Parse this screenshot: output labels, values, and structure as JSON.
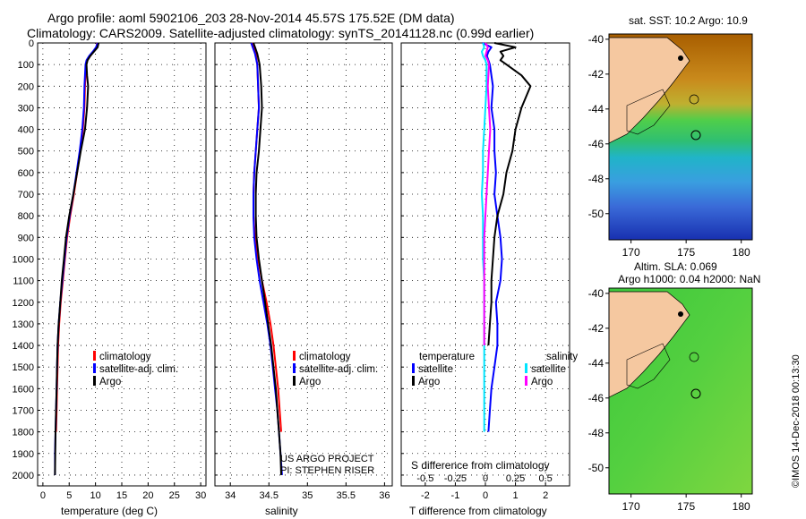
{
  "header": {
    "title_line1": "Argo profile: aoml 5902106_203 28-Nov-2014 45.57S 175.52E (DM data)",
    "title_line2": "Climatology: CARS2009. Satellite-adjusted climatology: synTS_20141128.nc (0.99d earlier)"
  },
  "credits": {
    "project": "US ARGO PROJECT",
    "pi": "PI: STEPHEN RISER",
    "stamp": "©IMOS 14-Dec-2018 00:13:30"
  },
  "colors": {
    "climatology": "#ff0000",
    "satellite": "#0000ff",
    "argo": "#000000",
    "satellite_s": "#00e5ff",
    "argo_s": "#ff00ff",
    "land": "#f5c8a0"
  },
  "chart_data": [
    {
      "id": "temperature",
      "type": "line",
      "xlabel": "temperature (deg C)",
      "ylabel": "",
      "xlim": [
        -1,
        31
      ],
      "ylim": [
        2050,
        0
      ],
      "xticks": [
        0,
        5,
        10,
        15,
        20,
        25,
        30
      ],
      "yticks": [
        0,
        100,
        200,
        300,
        400,
        500,
        600,
        700,
        800,
        900,
        1000,
        1100,
        1200,
        1300,
        1400,
        1500,
        1600,
        1700,
        1800,
        1900,
        2000
      ],
      "grid": true,
      "legend_position": "lower-center",
      "legend": [
        "climatology",
        "satellite-adj. clim.",
        "Argo"
      ],
      "series": [
        {
          "name": "climatology",
          "color": "#ff0000",
          "pressure": [
            0,
            20,
            40,
            60,
            80,
            100,
            150,
            200,
            300,
            400,
            500,
            600,
            700,
            800,
            900,
            1000,
            1100,
            1200,
            1300,
            1400,
            1500,
            1600,
            1700,
            1800
          ],
          "values": [
            10.3,
            10.2,
            9.6,
            9.0,
            8.4,
            8.2,
            8.1,
            8.0,
            7.9,
            7.6,
            7.1,
            6.5,
            5.9,
            5.2,
            4.6,
            4.2,
            3.8,
            3.4,
            3.1,
            2.9,
            2.8,
            2.7,
            2.6,
            2.5
          ]
        },
        {
          "name": "satellite-adj. clim.",
          "color": "#0000ff",
          "pressure": [
            0,
            20,
            40,
            60,
            80,
            100,
            150,
            200,
            300,
            400,
            500,
            600,
            700,
            800,
            900,
            1000,
            1100,
            1200,
            1300,
            1400,
            1500,
            1600,
            1700,
            1800,
            1900,
            2000
          ],
          "values": [
            10.4,
            10.1,
            9.5,
            8.8,
            8.3,
            8.1,
            8.0,
            7.9,
            7.8,
            7.5,
            7.0,
            6.4,
            5.8,
            5.1,
            4.5,
            4.1,
            3.7,
            3.3,
            3.0,
            2.8,
            2.7,
            2.6,
            2.5,
            2.4,
            2.3,
            2.3
          ]
        },
        {
          "name": "Argo",
          "color": "#000000",
          "pressure": [
            0,
            20,
            40,
            60,
            80,
            100,
            150,
            200,
            300,
            400,
            500,
            600,
            700,
            800,
            900,
            1000,
            1100,
            1200,
            1300,
            1400,
            1500,
            1600,
            1700,
            1800,
            1900,
            2000
          ],
          "values": [
            10.6,
            10.4,
            9.7,
            9.0,
            8.5,
            8.3,
            8.4,
            8.6,
            8.4,
            8.0,
            7.2,
            6.5,
            5.8,
            5.0,
            4.4,
            4.0,
            3.6,
            3.3,
            3.0,
            2.8,
            2.7,
            2.6,
            2.5,
            2.4,
            2.35,
            2.3
          ]
        }
      ]
    },
    {
      "id": "salinity",
      "type": "line",
      "xlabel": "salinity",
      "xlim": [
        33.8,
        36.1
      ],
      "ylim": [
        2050,
        0
      ],
      "xticks": [
        34,
        34.5,
        35,
        35.5,
        36
      ],
      "xtick_labels": [
        "34",
        "34.5",
        "35",
        "35.5",
        "36"
      ],
      "grid": true,
      "legend_position": "lower-right",
      "legend": [
        "climatology",
        "satellite-adj. clim.",
        "Argo"
      ],
      "series": [
        {
          "name": "climatology",
          "color": "#ff0000",
          "pressure": [
            0,
            20,
            50,
            100,
            200,
            300,
            400,
            500,
            600,
            700,
            800,
            900,
            1000,
            1100,
            1200,
            1300,
            1400,
            1500,
            1600,
            1700,
            1800
          ],
          "values": [
            34.28,
            34.3,
            34.33,
            34.35,
            34.36,
            34.37,
            34.35,
            34.33,
            34.31,
            34.3,
            34.3,
            34.32,
            34.36,
            34.41,
            34.47,
            34.52,
            34.56,
            34.59,
            34.62,
            34.64,
            34.66
          ]
        },
        {
          "name": "satellite-adj. clim.",
          "color": "#0000ff",
          "pressure": [
            0,
            20,
            50,
            100,
            200,
            300,
            400,
            500,
            600,
            700,
            800,
            900,
            1000,
            1100,
            1200,
            1300,
            1400,
            1500,
            1600,
            1700,
            1800,
            1900,
            2000
          ],
          "values": [
            34.27,
            34.29,
            34.32,
            34.35,
            34.36,
            34.37,
            34.35,
            34.33,
            34.31,
            34.3,
            34.3,
            34.31,
            34.34,
            34.38,
            34.43,
            34.48,
            34.52,
            34.55,
            34.58,
            34.61,
            34.63,
            34.65,
            34.67
          ]
        },
        {
          "name": "Argo",
          "color": "#000000",
          "pressure": [
            0,
            20,
            50,
            100,
            200,
            300,
            400,
            500,
            600,
            700,
            800,
            900,
            1000,
            1100,
            1200,
            1300,
            1400,
            1500,
            1600,
            1700,
            1800,
            1900,
            2000
          ],
          "values": [
            34.3,
            34.32,
            34.35,
            34.38,
            34.4,
            34.41,
            34.39,
            34.37,
            34.34,
            34.33,
            34.33,
            34.34,
            34.37,
            34.41,
            34.45,
            34.49,
            34.53,
            34.56,
            34.59,
            34.61,
            34.63,
            34.65,
            34.66
          ]
        }
      ]
    },
    {
      "id": "differences",
      "type": "line",
      "xlabel": "T difference from climatology",
      "xlabel_top": "S difference from climatology",
      "xlim": [
        -2.8,
        2.8
      ],
      "ylim": [
        2050,
        0
      ],
      "xticks": [
        -2,
        -1,
        0,
        1,
        2
      ],
      "xticks_S": [
        -0.5,
        -0.25,
        0,
        0.25,
        0.5
      ],
      "xtick_labels_S": [
        "-0.5",
        "-0.25",
        "0",
        "0.25",
        "0.5"
      ],
      "s_scale": 4,
      "grid": true,
      "legend_position": "lower",
      "legend_titles": [
        "temperature",
        "salinity"
      ],
      "legend_left": [
        "satellite",
        "Argo"
      ],
      "legend_right": [
        "satellite",
        "Argo"
      ],
      "series": [
        {
          "name": "T satellite",
          "color": "#0000ff",
          "pressure": [
            0,
            20,
            40,
            60,
            80,
            100,
            150,
            200,
            300,
            400,
            500,
            600,
            700,
            800,
            900,
            1000,
            1100,
            1200,
            1300,
            1400,
            1500,
            1600,
            1700,
            1800
          ],
          "values": [
            -0.1,
            0.2,
            0.1,
            0.05,
            0.1,
            0.15,
            0.2,
            0.25,
            0.2,
            0.3,
            0.3,
            0.35,
            0.3,
            0.4,
            0.5,
            0.55,
            0.5,
            0.35,
            0.4,
            0.4,
            0.3,
            0.2,
            0.15,
            0.1
          ]
        },
        {
          "name": "T Argo",
          "color": "#000000",
          "pressure": [
            0,
            20,
            40,
            60,
            80,
            100,
            150,
            200,
            300,
            400,
            500,
            600,
            700,
            800,
            900,
            1000,
            1100,
            1200,
            1300,
            1400
          ],
          "values": [
            0.3,
            1.0,
            0.5,
            0.6,
            0.5,
            0.7,
            1.2,
            1.5,
            1.2,
            1.0,
            0.9,
            0.7,
            0.6,
            0.4,
            0.3,
            0.25,
            0.2,
            0.2,
            0.15,
            0.1
          ]
        },
        {
          "name": "S satellite",
          "color": "#00e5ff",
          "pressure": [
            0,
            20,
            40,
            60,
            80,
            100,
            200,
            300,
            400,
            500,
            600,
            700,
            800,
            900,
            1000,
            1100,
            1200,
            1300,
            1400,
            1500,
            1600,
            1700,
            1800
          ],
          "values": [
            -0.02,
            -0.01,
            -0.03,
            -0.02,
            0.0,
            0.01,
            0.01,
            0.0,
            -0.01,
            -0.02,
            -0.02,
            -0.03,
            -0.02,
            -0.02,
            -0.02,
            -0.01,
            -0.01,
            -0.01,
            -0.01,
            -0.01,
            -0.01,
            -0.01,
            -0.01
          ]
        },
        {
          "name": "S Argo",
          "color": "#ff00ff",
          "pressure": [
            0,
            20,
            40,
            60,
            80,
            100,
            200,
            300,
            400,
            500,
            600,
            700,
            800,
            900,
            1000,
            1100,
            1200,
            1300,
            1400
          ],
          "values": [
            0.0,
            0.02,
            0.01,
            0.0,
            0.02,
            0.03,
            0.02,
            0.03,
            0.04,
            0.03,
            0.02,
            0.01,
            0.0,
            -0.01,
            -0.01,
            -0.01,
            -0.01,
            -0.01,
            -0.01
          ]
        }
      ]
    },
    {
      "id": "sst_map",
      "type": "heatmap",
      "title": "sat. SST: 10.2 Argo: 10.9",
      "xlim": [
        168,
        181
      ],
      "ylim": [
        -51.5,
        -39.7
      ],
      "xticks": [
        170,
        175,
        180
      ],
      "yticks": [
        -40,
        -42,
        -44,
        -46,
        -48,
        -50
      ],
      "float_position": [
        175.52,
        -45.57
      ]
    },
    {
      "id": "sla_map",
      "type": "heatmap",
      "title_line1": "Altim. SLA: 0.069",
      "title_line2": "Argo h1000: 0.04 h2000: NaN",
      "xlim": [
        168,
        181
      ],
      "ylim": [
        -51.5,
        -39.7
      ],
      "xticks": [
        170,
        175,
        180
      ],
      "yticks": [
        -40,
        -42,
        -44,
        -46,
        -48,
        -50
      ],
      "float_position": [
        175.52,
        -45.57
      ]
    }
  ]
}
